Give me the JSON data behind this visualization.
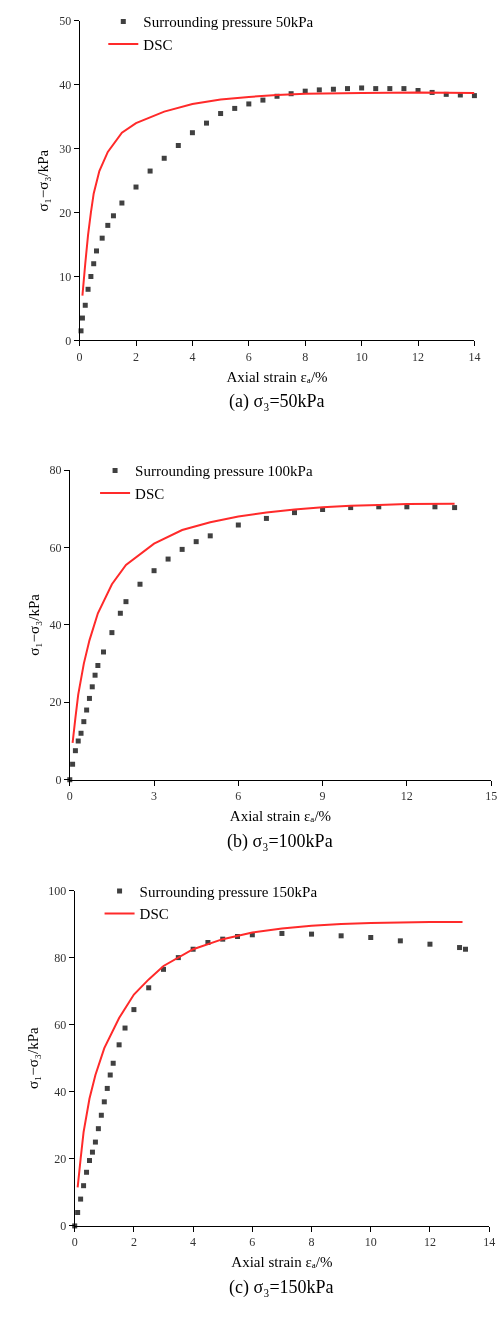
{
  "chart_data": [
    {
      "type": "scatter",
      "xlabel": "Axial strain εₐ/%",
      "ylabel": "σ₁−σ₃/kPa",
      "annotations": [
        "(a) σ₃=50kPa"
      ],
      "xlim": [
        0,
        14
      ],
      "xticks": [
        0,
        2,
        4,
        6,
        8,
        10,
        12,
        14
      ],
      "ylim": [
        0,
        50
      ],
      "yticks": [
        0,
        10,
        20,
        30,
        40,
        50
      ],
      "grid": false,
      "legend": "top left",
      "series": [
        {
          "name": "Surrounding pressure 50kPa",
          "marker": "square",
          "color": "#404040",
          "x": [
            0.05,
            0.1,
            0.2,
            0.3,
            0.4,
            0.5,
            0.6,
            0.8,
            1,
            1.2,
            1.5,
            2,
            2.5,
            3,
            3.5,
            4,
            4.5,
            5,
            5.5,
            6,
            6.5,
            7,
            7.5,
            8,
            8.5,
            9,
            9.5,
            10,
            10.5,
            11,
            11.5,
            12,
            12.5,
            13,
            13.5,
            14
          ],
          "values": [
            1.5,
            3.5,
            5.5,
            8,
            10,
            12,
            14,
            16,
            18,
            19.5,
            21.5,
            24,
            26.5,
            28.5,
            30.5,
            32.5,
            34,
            35.5,
            36.3,
            37,
            37.6,
            38.2,
            38.6,
            39,
            39.2,
            39.3,
            39.4,
            39.5,
            39.4,
            39.4,
            39.4,
            39.1,
            38.8,
            38.5,
            38.4,
            38.3
          ]
        },
        {
          "name": "DSC",
          "type": "line",
          "line_style": "solid",
          "color": "#ff2a2a",
          "x": [
            0.1,
            0.2,
            0.3,
            0.4,
            0.5,
            0.7,
            1,
            1.5,
            2,
            3,
            4,
            5,
            6,
            7,
            8,
            10,
            12,
            14
          ],
          "values": [
            7,
            12,
            16.5,
            20,
            23,
            26.5,
            29.5,
            32.5,
            34,
            35.8,
            37,
            37.7,
            38.1,
            38.4,
            38.6,
            38.7,
            38.8,
            38.7
          ]
        }
      ]
    },
    {
      "type": "scatter",
      "xlabel": "Axial strain εₐ/%",
      "ylabel": "σ₁−σ₃/kPa",
      "annotations": [
        "(b) σ₃=100kPa"
      ],
      "xlim": [
        0,
        15
      ],
      "xticks": [
        0,
        3,
        6,
        9,
        12,
        15
      ],
      "ylim": [
        0,
        80
      ],
      "yticks": [
        0,
        20,
        40,
        60,
        80
      ],
      "grid": false,
      "legend": "top left",
      "series": [
        {
          "name": "Surrounding pressure 100kPa",
          "marker": "square",
          "color": "#404040",
          "x": [
            0,
            0.1,
            0.2,
            0.3,
            0.4,
            0.5,
            0.6,
            0.7,
            0.8,
            0.9,
            1,
            1.2,
            1.5,
            1.8,
            2,
            2.5,
            3,
            3.5,
            4,
            4.5,
            5,
            6,
            7,
            8,
            9,
            10,
            11,
            12,
            13,
            13.7
          ],
          "values": [
            0,
            4,
            7.5,
            10,
            12,
            15,
            18,
            21,
            24,
            27,
            29.5,
            33,
            38,
            43,
            46,
            50.5,
            54,
            57,
            59.5,
            61.5,
            63,
            65.8,
            67.5,
            69,
            69.8,
            70.3,
            70.5,
            70.5,
            70.5,
            70.3
          ]
        },
        {
          "name": "DSC",
          "type": "line",
          "line_style": "solid",
          "color": "#ff2a2a",
          "x": [
            0.1,
            0.2,
            0.3,
            0.5,
            0.7,
            1,
            1.5,
            2,
            3,
            4,
            5,
            6,
            7,
            8,
            9,
            10,
            11,
            12,
            13.7
          ],
          "values": [
            9.5,
            16,
            22,
            30,
            36,
            43,
            50.5,
            55.5,
            61,
            64.5,
            66.5,
            68,
            69,
            69.8,
            70.4,
            70.8,
            71,
            71.2,
            71.3
          ]
        }
      ]
    },
    {
      "type": "scatter",
      "xlabel": "Axial strain εₐ/%",
      "ylabel": "σ₁−σ₃/kPa",
      "annotations": [
        "(c) σ₃=150kPa"
      ],
      "xlim": [
        0,
        14
      ],
      "xticks": [
        0,
        2,
        4,
        6,
        8,
        10,
        12,
        14
      ],
      "ylim": [
        0,
        100
      ],
      "yticks": [
        0,
        20,
        40,
        60,
        80,
        100
      ],
      "grid": false,
      "legend": "top left",
      "series": [
        {
          "name": "Surrounding pressure 150kPa",
          "marker": "square",
          "color": "#404040",
          "x": [
            0,
            0.1,
            0.2,
            0.3,
            0.4,
            0.5,
            0.6,
            0.7,
            0.8,
            0.9,
            1,
            1.1,
            1.2,
            1.3,
            1.5,
            1.7,
            2,
            2.5,
            3,
            3.5,
            4,
            4.5,
            5,
            5.5,
            6,
            7,
            8,
            9,
            10,
            11,
            12,
            13,
            13.2
          ],
          "values": [
            0,
            4,
            8,
            12,
            16,
            19.5,
            22,
            25,
            29,
            33,
            37,
            41,
            45,
            48.5,
            54,
            59,
            64.5,
            71,
            76.5,
            80,
            82.5,
            84.5,
            85.5,
            86.3,
            86.8,
            87.2,
            87,
            86.5,
            86,
            85,
            84,
            83,
            82.5
          ]
        },
        {
          "name": "DSC",
          "type": "line",
          "line_style": "solid",
          "color": "#ff2a2a",
          "x": [
            0.1,
            0.2,
            0.3,
            0.5,
            0.7,
            1,
            1.5,
            2,
            2.5,
            3,
            4,
            5,
            6,
            7,
            8,
            9,
            10,
            11,
            12,
            13.1
          ],
          "values": [
            11.5,
            20,
            28,
            38,
            45,
            53,
            62,
            69,
            73.5,
            77.5,
            82.5,
            85.5,
            87.5,
            88.7,
            89.5,
            90,
            90.3,
            90.5,
            90.6,
            90.6
          ]
        }
      ]
    }
  ]
}
